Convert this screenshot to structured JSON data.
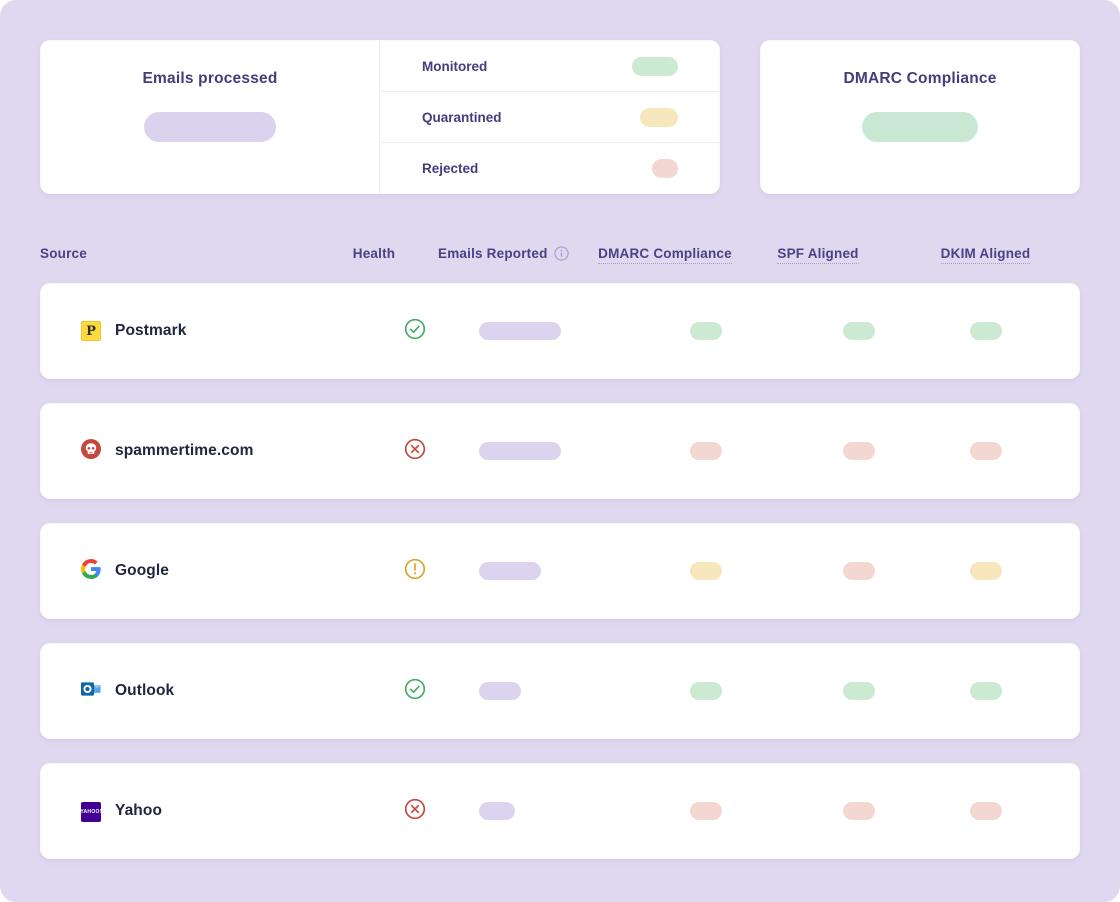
{
  "colors": {
    "background": "#DFD8EF",
    "card": "#FFFFFF",
    "title_text": "#453C7C",
    "header_text": "#4A4186",
    "row_text": "#20263D",
    "pill_purple": "#DCD4EE",
    "pill_green": "#CCE9D2",
    "pill_yellow": "#F7E7BD",
    "pill_red": "#F3D8D1",
    "big_pill_purple": "#DBD3ED",
    "big_pill_green": "#C9E8D3",
    "health_ok": "#44AE63",
    "health_fail": "#C64A3B",
    "health_warn": "#D9A32E",
    "divider": "#EFECF6",
    "info_icon": "#A79DCC"
  },
  "summary": {
    "emails_processed": {
      "title": "Emails processed"
    },
    "legend": [
      {
        "label": "Monitored",
        "status": "pass",
        "pill_width": 46
      },
      {
        "label": "Quarantined",
        "status": "warn",
        "pill_width": 38
      },
      {
        "label": "Rejected",
        "status": "fail",
        "pill_width": 26
      }
    ],
    "dmarc_compliance": {
      "title": "DMARC Compliance"
    }
  },
  "table": {
    "headers": {
      "source": "Source",
      "health": "Health",
      "emails_reported": "Emails Reported",
      "dmarc_compliance": "DMARC Compliance",
      "spf_aligned": "SPF Aligned",
      "dkim_aligned": "DKIM Aligned"
    },
    "rows": [
      {
        "source": "Postmark",
        "icon": "postmark",
        "health": "pass",
        "emails_reported_pill_width": 82,
        "dmarc_compliance": "pass",
        "spf_aligned": "pass",
        "dkim_aligned": "pass"
      },
      {
        "source": "spammertime.com",
        "icon": "spammertime",
        "health": "fail",
        "emails_reported_pill_width": 82,
        "dmarc_compliance": "fail",
        "spf_aligned": "fail",
        "dkim_aligned": "fail"
      },
      {
        "source": "Google",
        "icon": "google",
        "health": "warn",
        "emails_reported_pill_width": 62,
        "dmarc_compliance": "warn",
        "spf_aligned": "fail",
        "dkim_aligned": "warn"
      },
      {
        "source": "Outlook",
        "icon": "outlook",
        "health": "pass",
        "emails_reported_pill_width": 42,
        "dmarc_compliance": "pass",
        "spf_aligned": "pass",
        "dkim_aligned": "pass"
      },
      {
        "source": "Yahoo",
        "icon": "yahoo",
        "health": "fail",
        "emails_reported_pill_width": 36,
        "dmarc_compliance": "fail",
        "spf_aligned": "fail",
        "dkim_aligned": "fail"
      }
    ]
  }
}
